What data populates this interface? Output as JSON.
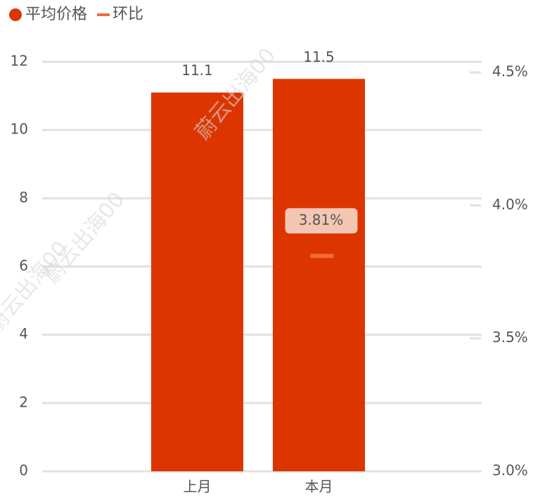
{
  "chart_data": {
    "type": "bar",
    "watermark": "蔚云出海00",
    "categories": [
      "上月",
      "本月"
    ],
    "series": [
      {
        "name": "平均价格",
        "color": "#dc3500",
        "type": "bar",
        "values": [
          11.1,
          11.5
        ]
      },
      {
        "name": "环比",
        "color": "#f26b3a",
        "type": "line",
        "axis": "y2",
        "values": [
          null,
          3.81
        ],
        "value_labels": [
          null,
          "3.81%"
        ]
      }
    ],
    "ylim": [
      0,
      12
    ],
    "yticks": [
      0,
      2,
      4,
      6,
      8,
      10,
      12
    ],
    "y2lim": [
      3.0,
      4.54
    ],
    "y2ticks": [
      {
        "value": 3.0,
        "label": "3.0%"
      },
      {
        "value": 3.5,
        "label": "3.5%"
      },
      {
        "value": 4.0,
        "label": "4.0%"
      },
      {
        "value": 4.5,
        "label": "4.5%"
      }
    ],
    "grid": true,
    "legend": "top-left"
  }
}
